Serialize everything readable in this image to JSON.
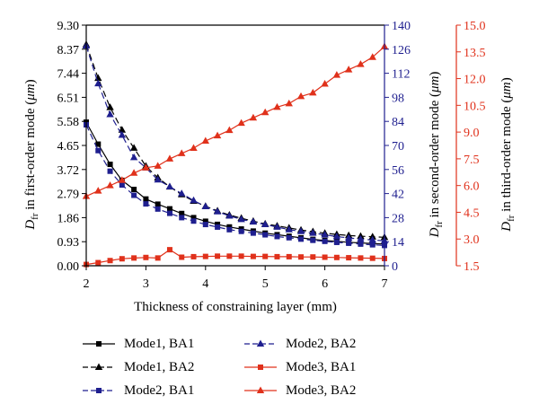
{
  "colors": {
    "black": "#000000",
    "blue": "#1f1f8f",
    "red": "#e0311b"
  },
  "chart_data": {
    "type": "line",
    "xlabel": "Thickness of constraining layer (mm)",
    "xlim": [
      2,
      7
    ],
    "x_ticks": [
      "2",
      "3",
      "4",
      "5",
      "6",
      "7"
    ],
    "y_axes": [
      {
        "id": "left",
        "label_prefix": "D",
        "label_sub": "fr",
        "label_suffix": " in first-order mode (",
        "label_unit": "μm",
        "label_close": ")",
        "lim": [
          0,
          9.3
        ],
        "ticks": [
          "0.00",
          "0.93",
          "1.86",
          "2.79",
          "3.72",
          "4.65",
          "5.58",
          "6.51",
          "7.44",
          "8.37",
          "9.30"
        ],
        "color": "#000000"
      },
      {
        "id": "right1",
        "label_prefix": "D",
        "label_sub": "fr",
        "label_suffix": " in second-order mode (",
        "label_unit": "μm",
        "label_close": ")",
        "lim": [
          0,
          140
        ],
        "ticks": [
          "0",
          "14",
          "28",
          "42",
          "56",
          "70",
          "84",
          "98",
          "112",
          "126",
          "140"
        ],
        "color": "#1f1f8f"
      },
      {
        "id": "right2",
        "label_prefix": "D",
        "label_sub": "fr",
        "label_suffix": " in third-order mode (",
        "label_unit": "μm",
        "label_close": ")",
        "lim": [
          1.5,
          15.0
        ],
        "ticks": [
          "1.5",
          "3.0",
          "4.5",
          "6.0",
          "7.5",
          "9.0",
          "10.5",
          "12.0",
          "13.5",
          "15.0"
        ],
        "color": "#e0311b"
      }
    ],
    "x": [
      2.0,
      2.2,
      2.4,
      2.6,
      2.8,
      3.0,
      3.2,
      3.4,
      3.6,
      3.8,
      4.0,
      4.2,
      4.4,
      4.6,
      4.8,
      5.0,
      5.2,
      5.4,
      5.6,
      5.8,
      6.0,
      6.2,
      6.4,
      6.6,
      6.8,
      7.0
    ],
    "series": [
      {
        "name": "Mode1, BA1",
        "axis": "left",
        "color": "#000000",
        "dash": false,
        "marker": "square",
        "values": [
          5.55,
          4.7,
          3.92,
          3.3,
          2.95,
          2.58,
          2.38,
          2.2,
          2.02,
          1.86,
          1.72,
          1.6,
          1.5,
          1.42,
          1.34,
          1.26,
          1.2,
          1.14,
          1.08,
          1.02,
          0.98,
          0.94,
          0.91,
          0.88,
          0.86,
          0.84
        ]
      },
      {
        "name": "Mode1, BA2",
        "axis": "left",
        "color": "#000000",
        "dash": true,
        "marker": "triangle",
        "values": [
          8.55,
          7.25,
          6.12,
          5.25,
          4.55,
          3.85,
          3.4,
          3.05,
          2.75,
          2.5,
          2.3,
          2.12,
          1.96,
          1.84,
          1.72,
          1.62,
          1.54,
          1.46,
          1.38,
          1.32,
          1.26,
          1.21,
          1.17,
          1.14,
          1.12,
          1.1
        ]
      },
      {
        "name": "Mode2, BA1",
        "axis": "right1",
        "color": "#1f1f8f",
        "dash": true,
        "marker": "square",
        "values": [
          82,
          67,
          55,
          47,
          41,
          36,
          33,
          30.5,
          28,
          26,
          24,
          22.5,
          21,
          20,
          19,
          18,
          17,
          16.3,
          15.5,
          14.8,
          14.2,
          13.6,
          13.1,
          12.6,
          12.2,
          11.8
        ]
      },
      {
        "name": "Mode2, BA2",
        "axis": "right1",
        "color": "#1f1f8f",
        "dash": true,
        "marker": "triangle",
        "values": [
          128,
          106,
          88,
          76,
          63,
          57,
          50,
          46,
          42,
          38,
          34.5,
          31.5,
          29,
          27,
          25.5,
          24,
          22.5,
          21,
          20,
          19,
          18,
          17,
          16.2,
          15.5,
          15,
          14.5
        ]
      },
      {
        "name": "Mode3, BA1",
        "axis": "left",
        "color": "#e0311b",
        "dash": false,
        "marker": "square",
        "values": [
          0.05,
          0.12,
          0.2,
          0.27,
          0.3,
          0.32,
          0.3,
          0.62,
          0.33,
          0.35,
          0.36,
          0.37,
          0.37,
          0.37,
          0.36,
          0.36,
          0.35,
          0.35,
          0.34,
          0.34,
          0.33,
          0.32,
          0.31,
          0.3,
          0.29,
          0.28
        ]
      },
      {
        "name": "Mode3, BA2",
        "axis": "right2",
        "color": "#e0311b",
        "dash": false,
        "marker": "triangle",
        "values": [
          5.4,
          5.7,
          6.0,
          6.3,
          6.7,
          7.0,
          7.1,
          7.5,
          7.8,
          8.1,
          8.5,
          8.8,
          9.1,
          9.5,
          9.8,
          10.1,
          10.4,
          10.6,
          11.0,
          11.2,
          11.7,
          12.2,
          12.5,
          12.8,
          13.2,
          13.8
        ]
      }
    ],
    "legend": {
      "placement": "bottom",
      "items": [
        {
          "label": "Mode1, BA1",
          "color": "#000000",
          "dash": false,
          "marker": "square"
        },
        {
          "label": "Mode2, BA2",
          "color": "#1f1f8f",
          "dash": true,
          "marker": "triangle"
        },
        {
          "label": "Mode1, BA2",
          "color": "#000000",
          "dash": true,
          "marker": "triangle"
        },
        {
          "label": "Mode3, BA1",
          "color": "#e0311b",
          "dash": false,
          "marker": "square"
        },
        {
          "label": "Mode2, BA1",
          "color": "#1f1f8f",
          "dash": true,
          "marker": "square"
        },
        {
          "label": "Mode3, BA2",
          "color": "#e0311b",
          "dash": false,
          "marker": "triangle"
        }
      ]
    }
  }
}
